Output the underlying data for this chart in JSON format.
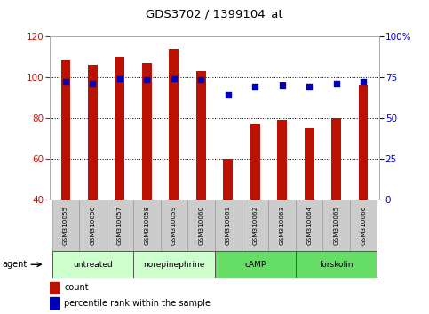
{
  "title": "GDS3702 / 1399104_at",
  "samples": [
    "GSM310055",
    "GSM310056",
    "GSM310057",
    "GSM310058",
    "GSM310059",
    "GSM310060",
    "GSM310061",
    "GSM310062",
    "GSM310063",
    "GSM310064",
    "GSM310065",
    "GSM310066"
  ],
  "counts": [
    108,
    106,
    110,
    107,
    114,
    103,
    60,
    77,
    79,
    75,
    80,
    96
  ],
  "percentile_ranks": [
    72,
    71,
    74,
    73,
    74,
    73,
    64,
    69,
    70,
    69,
    71,
    72
  ],
  "ylim_left": [
    40,
    120
  ],
  "ylim_right": [
    0,
    100
  ],
  "yticks_left": [
    40,
    60,
    80,
    100,
    120
  ],
  "yticks_right": [
    0,
    25,
    50,
    75,
    100
  ],
  "ytick_labels_right": [
    "0",
    "25",
    "50",
    "75",
    "100%"
  ],
  "bar_color": "#bb1100",
  "dot_color": "#0000bb",
  "background_color": "#ffffff",
  "agents": [
    {
      "label": "untreated",
      "start": 0,
      "end": 3,
      "color": "#ccffcc"
    },
    {
      "label": "norepinephrine",
      "start": 3,
      "end": 6,
      "color": "#ccffcc"
    },
    {
      "label": "cAMP",
      "start": 6,
      "end": 9,
      "color": "#66dd66"
    },
    {
      "label": "forskolin",
      "start": 9,
      "end": 12,
      "color": "#66dd66"
    }
  ],
  "legend_count_label": "count",
  "legend_percentile_label": "percentile rank within the sample",
  "agent_label": "agent",
  "tick_label_color_left": "#cc1100",
  "tick_label_color_right": "#0000cc",
  "bar_width": 0.35
}
